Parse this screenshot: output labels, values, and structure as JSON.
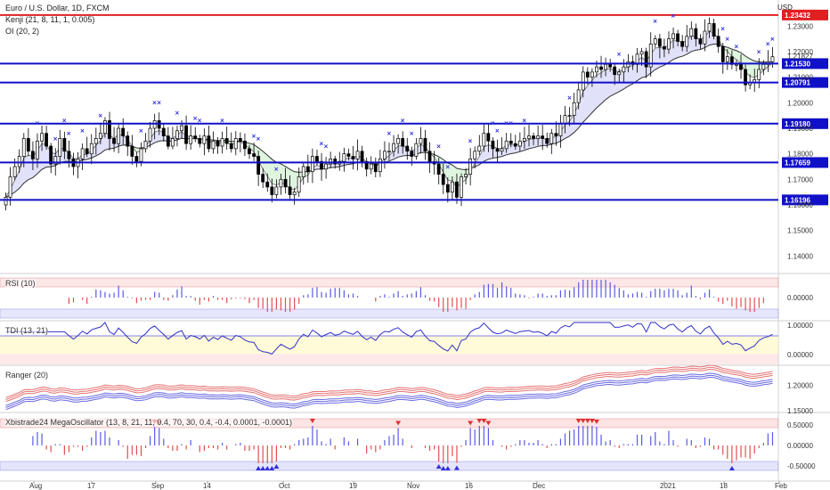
{
  "header": {
    "symbol_line": "Euro / U.S. Dollar, 1D, FXCM",
    "indicator_1": "Kenji (21, 8, 11, 1, 0.005)",
    "indicator_2": "OI (20, 2)",
    "currency": "USD"
  },
  "panes": {
    "rsi_label": "RSI (10)",
    "tdi_label": "TDI (13, 21)",
    "ranger_label": "Ranger (20)",
    "mega_label": "Xbistrade24 MegaOscillator (13, 8, 21, 11, 0.4, 70, 30, 0.4, -0.4, 0.0001, -0.0001)"
  },
  "colors": {
    "bull": "#ffffff",
    "bear": "#000000",
    "level_line": "#1010c8",
    "top_line": "#e02020",
    "axis_text": "#333333",
    "marker": "#3333dd",
    "sell": "#e05050"
  },
  "chart_data": [
    {
      "type": "candlestick",
      "title": "Euro / U.S. Dollar, 1D, FXCM",
      "x_ticks": [
        "Aug",
        "17",
        "Sep",
        "14",
        "Oct",
        "19",
        "Nov",
        "16",
        "Dec",
        "2021",
        "18",
        "Feb"
      ],
      "y_ticks": [
        1.23,
        1.22,
        1.21,
        1.2,
        1.19,
        1.18,
        1.17,
        1.16,
        1.15,
        1.14
      ],
      "ylim": [
        1.1335,
        1.2402
      ],
      "current_price": "1.21827",
      "levels": [
        {
          "label": "1.23432",
          "value": 1.23432,
          "style": "top"
        },
        {
          "label": "1.21530",
          "value": 1.2153,
          "style": "level"
        },
        {
          "label": "1.20791",
          "value": 1.20791,
          "style": "level"
        },
        {
          "label": "1.19180",
          "value": 1.1918,
          "style": "level"
        },
        {
          "label": "1.17659",
          "value": 1.17659,
          "style": "level"
        },
        {
          "label": "1.16196",
          "value": 1.16196,
          "style": "level"
        }
      ],
      "series": [
        {
          "name": "close",
          "values": [
            1.163,
            1.171,
            1.175,
            1.179,
            1.186,
            1.181,
            1.178,
            1.185,
            1.188,
            1.183,
            1.176,
            1.179,
            1.186,
            1.181,
            1.178,
            1.175,
            1.178,
            1.182,
            1.18,
            1.184,
            1.186,
            1.188,
            1.193,
            1.186,
            1.184,
            1.19,
            1.187,
            1.183,
            1.179,
            1.177,
            1.182,
            1.185,
            1.19,
            1.193,
            1.19,
            1.187,
            1.183,
            1.186,
            1.189,
            1.191,
            1.184,
            1.187,
            1.186,
            1.184,
            1.187,
            1.182,
            1.185,
            1.183,
            1.186,
            1.184,
            1.182,
            1.186,
            1.185,
            1.182,
            1.18,
            1.179,
            1.172,
            1.169,
            1.167,
            1.164,
            1.167,
            1.17,
            1.167,
            1.164,
            1.165,
            1.171,
            1.175,
            1.173,
            1.179,
            1.177,
            1.174,
            1.176,
            1.178,
            1.176,
            1.177,
            1.18,
            1.179,
            1.178,
            1.181,
            1.177,
            1.174,
            1.176,
            1.173,
            1.178,
            1.181,
            1.181,
            1.184,
            1.186,
            1.183,
            1.181,
            1.179,
            1.184,
            1.186,
            1.181,
            1.177,
            1.176,
            1.172,
            1.168,
            1.165,
            1.169,
            1.163,
            1.171,
            1.172,
            1.178,
            1.181,
            1.183,
            1.188,
            1.185,
            1.182,
            1.181,
            1.182,
            1.185,
            1.184,
            1.183,
            1.185,
            1.186,
            1.187,
            1.186,
            1.187,
            1.186,
            1.184,
            1.188,
            1.187,
            1.192,
            1.195,
            1.195,
            1.2,
            1.205,
            1.212,
            1.21,
            1.212,
            1.214,
            1.213,
            1.215,
            1.214,
            1.211,
            1.212,
            1.214,
            1.216,
            1.215,
            1.219,
            1.22,
            1.214,
            1.223,
            1.225,
            1.222,
            1.221,
            1.225,
            1.227,
            1.224,
            1.222,
            1.226,
            1.229,
            1.225,
            1.223,
            1.228,
            1.231,
            1.226,
            1.222,
            1.216,
            1.218,
            1.215,
            1.215,
            1.213,
            1.207,
            1.208,
            1.209,
            1.213,
            1.215,
            1.216,
            1.218
          ]
        }
      ]
    },
    {
      "type": "bar",
      "title": "RSI (10)",
      "y_ticks": [
        "0.00000"
      ],
      "ylim": [
        -0.6,
        0.6
      ]
    },
    {
      "type": "line",
      "title": "TDI (13, 21)",
      "y_ticks": [
        "1.00000",
        "0.00000"
      ],
      "ylim": [
        -0.3,
        1.3
      ]
    },
    {
      "type": "line",
      "title": "Ranger (20)",
      "y_ticks": [
        "1.20000",
        "1.15000"
      ],
      "ylim": [
        1.145,
        1.24
      ]
    },
    {
      "type": "bar",
      "title": "Xbistrade24 MegaOscillator (13, 8, 21, 11, 0.4, 70, 30, 0.4, -0.4, 0.0001, -0.0001)",
      "y_ticks": [
        "0.50000",
        "0.00000",
        "-0.50000"
      ],
      "ylim": [
        -0.7,
        0.7
      ]
    }
  ]
}
